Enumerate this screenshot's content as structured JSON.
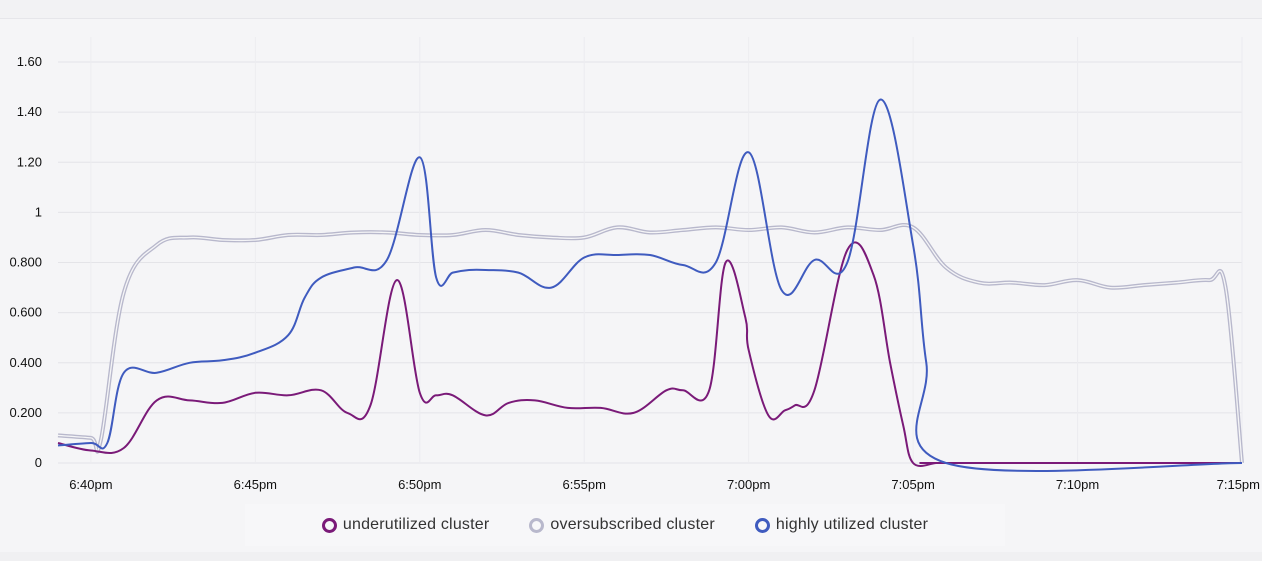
{
  "chart_data": {
    "type": "line",
    "y_ticks": [
      "0",
      "0.200",
      "0.400",
      "0.600",
      "0.800",
      "1",
      "1.20",
      "1.40",
      "1.60"
    ],
    "y_tick_values": [
      0,
      0.2,
      0.4,
      0.6,
      0.8,
      1.0,
      1.2,
      1.4,
      1.6
    ],
    "ylim": [
      0,
      1.7
    ],
    "x_ticks": [
      "6:40pm",
      "6:45pm",
      "6:50pm",
      "6:55pm",
      "7:00pm",
      "7:05pm",
      "7:10pm",
      "7:15pm"
    ],
    "x_tick_values": [
      0,
      5,
      10,
      15,
      20,
      25,
      30,
      35
    ],
    "x_unit": "minutes after 6:40pm",
    "xlim": [
      -1.0,
      35.0
    ],
    "grid": true,
    "legend_position": "bottom",
    "series": [
      {
        "name": "underutilized cluster",
        "color": "#7a1a78",
        "style": "solid",
        "x": [
          -1.0,
          0,
          1,
          2,
          3,
          4,
          5,
          6,
          7,
          7.8,
          8.5,
          9.3,
          10,
          10.5,
          11,
          12,
          12.7,
          13.5,
          14.5,
          15.5,
          16.5,
          17.5,
          18,
          18.8,
          19.3,
          19.9,
          20,
          20.6,
          21.1,
          21.4,
          22,
          23,
          23.8,
          24.3,
          24.7,
          25,
          25.7,
          26.0,
          35.0
        ],
        "y": [
          0.08,
          0.05,
          0.06,
          0.25,
          0.25,
          0.24,
          0.28,
          0.27,
          0.29,
          0.2,
          0.23,
          0.73,
          0.28,
          0.27,
          0.27,
          0.19,
          0.24,
          0.25,
          0.22,
          0.22,
          0.2,
          0.29,
          0.29,
          0.29,
          0.8,
          0.58,
          0.45,
          0.19,
          0.21,
          0.23,
          0.29,
          0.85,
          0.75,
          0.4,
          0.15,
          0.0,
          0.0,
          0.0,
          0.0
        ]
      },
      {
        "name": "oversubscribed cluster",
        "color": "#b8b8cc",
        "style": "double",
        "x": [
          -1.0,
          0,
          0.3,
          1,
          2,
          3,
          4,
          5,
          6,
          7,
          8,
          9,
          10,
          11,
          12,
          13,
          14,
          15,
          16,
          17,
          18,
          19,
          20,
          21,
          22,
          23,
          24,
          25,
          26,
          27,
          28,
          29,
          30,
          31,
          32,
          33,
          34,
          34.5,
          35.0
        ],
        "y": [
          0.11,
          0.1,
          0.09,
          0.68,
          0.87,
          0.9,
          0.89,
          0.89,
          0.91,
          0.91,
          0.92,
          0.92,
          0.91,
          0.91,
          0.93,
          0.91,
          0.9,
          0.9,
          0.94,
          0.92,
          0.93,
          0.94,
          0.93,
          0.94,
          0.92,
          0.94,
          0.93,
          0.94,
          0.78,
          0.72,
          0.72,
          0.71,
          0.73,
          0.7,
          0.71,
          0.72,
          0.73,
          0.7,
          0.0
        ]
      },
      {
        "name": "highly utilized cluster",
        "color": "#3f5bbf",
        "style": "solid",
        "x": [
          -1.0,
          0,
          0.5,
          1,
          2,
          3,
          4,
          5,
          6,
          6.5,
          7,
          8,
          9,
          10,
          10.5,
          11,
          11.5,
          12,
          13,
          14,
          15,
          16,
          17,
          18,
          19,
          20,
          21,
          22,
          23,
          24,
          25,
          25.4,
          26.0,
          35.0
        ],
        "y": [
          0.07,
          0.08,
          0.08,
          0.36,
          0.36,
          0.4,
          0.41,
          0.44,
          0.51,
          0.66,
          0.74,
          0.78,
          0.81,
          1.22,
          0.74,
          0.76,
          0.77,
          0.77,
          0.76,
          0.7,
          0.82,
          0.83,
          0.83,
          0.79,
          0.8,
          1.24,
          0.69,
          0.81,
          0.8,
          1.45,
          0.87,
          0.4,
          0.0,
          0.0
        ]
      }
    ]
  }
}
